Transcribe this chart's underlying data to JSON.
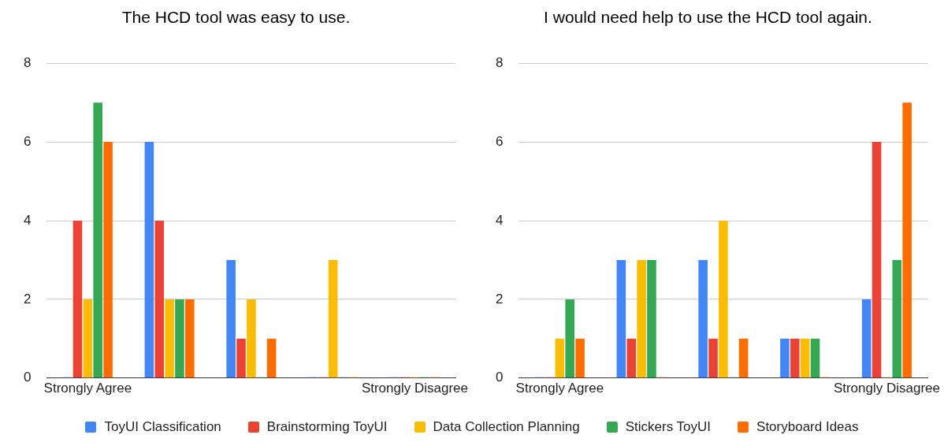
{
  "chart_data": [
    {
      "type": "bar",
      "title": "The HCD tool was easy to use.",
      "categories": [
        "Strongly Agree",
        null,
        null,
        null,
        "Strongly Disagree"
      ],
      "series": [
        {
          "name": "ToyUI Classification",
          "color": "#4285f4",
          "values": [
            0,
            6,
            3,
            0,
            0
          ]
        },
        {
          "name": "Brainstorming ToyUI",
          "color": "#ea4335",
          "values": [
            4,
            4,
            1,
            0,
            0
          ]
        },
        {
          "name": "Data Collection Planning",
          "color": "#fbbc04",
          "values": [
            2,
            2,
            2,
            3,
            0
          ]
        },
        {
          "name": "Stickers ToyUI",
          "color": "#34a853",
          "values": [
            7,
            2,
            0,
            0,
            0
          ]
        },
        {
          "name": "Storyboard Ideas",
          "color": "#ff6d01",
          "values": [
            6,
            2,
            1,
            0,
            0
          ]
        }
      ],
      "ylim": [
        0,
        8
      ],
      "yticks": [
        0,
        2,
        4,
        6,
        8
      ],
      "grid": "y",
      "legend": "bottom"
    },
    {
      "type": "bar",
      "title": "I would need help to use the HCD tool again.",
      "categories": [
        "Strongly Agree",
        null,
        null,
        null,
        "Strongly Disagree"
      ],
      "series": [
        {
          "color": "#4285f4",
          "values": [
            0,
            3,
            3,
            1,
            2
          ]
        },
        {
          "color": "#ea4335",
          "values": [
            0,
            1,
            1,
            1,
            6
          ]
        },
        {
          "color": "#fbbc04",
          "values": [
            1,
            3,
            4,
            1,
            0
          ]
        },
        {
          "color": "#34a853",
          "values": [
            2,
            3,
            0,
            1,
            3
          ]
        },
        {
          "color": "#ff6d01",
          "values": [
            1,
            0,
            1,
            0,
            7
          ]
        }
      ],
      "ylim": [
        0,
        8
      ],
      "yticks": [
        0,
        2,
        4,
        6,
        8
      ],
      "grid": "y"
    }
  ]
}
